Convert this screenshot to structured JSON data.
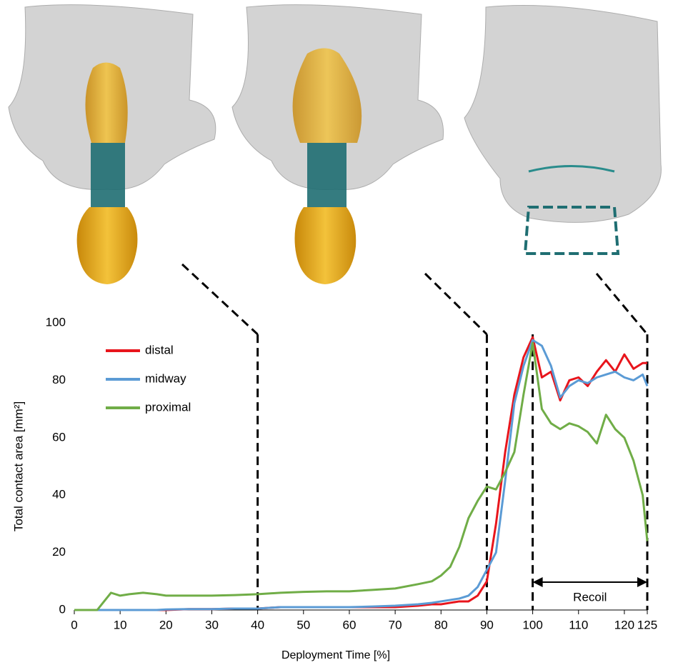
{
  "chart_data": {
    "type": "line",
    "x_label": "Deployment Time [%]",
    "y_label": "Total contact area [mm²]",
    "x": [
      0,
      5,
      6,
      8,
      10,
      12,
      15,
      18,
      20,
      25,
      30,
      35,
      40,
      45,
      50,
      55,
      60,
      65,
      70,
      75,
      78,
      80,
      82,
      84,
      86,
      88,
      90,
      92,
      94,
      96,
      98,
      100,
      102,
      104,
      106,
      108,
      110,
      112,
      114,
      116,
      118,
      120,
      122,
      124,
      125
    ],
    "series": [
      {
        "name": "distal",
        "color": "#e8151c",
        "values": [
          0,
          0,
          0,
          0,
          0,
          0,
          0,
          0,
          0,
          0.3,
          0.3,
          0.5,
          0.5,
          1,
          1,
          1,
          1,
          1,
          1,
          1.5,
          2,
          2,
          2.5,
          3,
          3,
          5,
          10,
          30,
          55,
          75,
          88,
          95,
          81,
          83,
          73,
          80,
          81,
          78,
          83,
          87,
          83,
          89,
          84,
          86,
          86
        ]
      },
      {
        "name": "midway",
        "color": "#5b9bd5",
        "values": [
          0,
          0,
          0,
          0,
          0,
          0,
          0,
          0,
          0.2,
          0.3,
          0.3,
          0.5,
          0.5,
          1,
          1,
          1,
          1,
          1.2,
          1.5,
          2,
          2.5,
          3,
          3.5,
          4,
          5,
          8,
          14,
          20,
          45,
          72,
          85,
          94,
          92,
          85,
          74,
          78,
          80,
          79,
          81,
          82,
          83,
          81,
          80,
          82,
          78
        ]
      },
      {
        "name": "proximal",
        "color": "#70ad47",
        "values": [
          0,
          0,
          2,
          6,
          5,
          5.5,
          6,
          5.5,
          5,
          5,
          5,
          5.2,
          5.5,
          6,
          6.3,
          6.5,
          6.5,
          7,
          7.5,
          9,
          10,
          12,
          15,
          22,
          32,
          38,
          43,
          42,
          48,
          55,
          75,
          93,
          70,
          65,
          63,
          65,
          64,
          62,
          58,
          68,
          63,
          60,
          52,
          40,
          24
        ]
      }
    ],
    "xlim": [
      0,
      125
    ],
    "xticks": [
      0,
      10,
      20,
      30,
      40,
      50,
      60,
      70,
      80,
      90,
      100,
      110,
      120,
      125
    ],
    "ylim": [
      0,
      100
    ],
    "yticks": [
      0,
      20,
      40,
      60,
      80,
      100
    ],
    "grid": false,
    "legend": "upper-left",
    "dashed_lines_x": [
      40,
      90,
      100,
      125
    ],
    "annotation": {
      "text": "Recoil",
      "x_range": [
        100,
        125
      ]
    }
  }
}
